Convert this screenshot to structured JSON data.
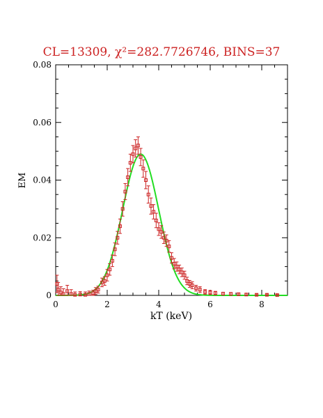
{
  "chart_data": {
    "type": "scatter",
    "title": "CL=13309, χ²=282.7726746, BINS=37",
    "xlabel": "kT (keV)",
    "ylabel": "EM",
    "xlim": [
      0,
      9
    ],
    "ylim": [
      0,
      0.08
    ],
    "x_ticks": [
      0,
      2,
      4,
      6,
      8
    ],
    "y_ticks": [
      0,
      0.02,
      0.04,
      0.06,
      0.08
    ],
    "y_tick_labels": [
      "0",
      "0.02",
      "0.04",
      "0.06",
      "0.08"
    ],
    "grid": false,
    "colors": {
      "data": "#cc2222",
      "model": "#22dd22",
      "title": "#cc2222",
      "axes": "#000000"
    },
    "series": [
      {
        "kind": "points-with-errorbars",
        "x": [
          0.05,
          0.1,
          0.2,
          0.3,
          0.45,
          0.6,
          0.75,
          0.95,
          1.15,
          1.3,
          1.45,
          1.55,
          1.65,
          1.8,
          1.9,
          2.0,
          2.1,
          2.2,
          2.3,
          2.4,
          2.5,
          2.6,
          2.7,
          2.8,
          2.9,
          3.0,
          3.1,
          3.2,
          3.3,
          3.4,
          3.5,
          3.6,
          3.7,
          3.8,
          3.9,
          4.0,
          4.1,
          4.2,
          4.3,
          4.4,
          4.5,
          4.6,
          4.7,
          4.8,
          4.9,
          5.0,
          5.1,
          5.2,
          5.3,
          5.45,
          5.6,
          5.8,
          6.0,
          6.2,
          6.5,
          6.8,
          7.1,
          7.4,
          7.8,
          8.2,
          8.6
        ],
        "y": [
          0.004,
          0.002,
          0.001,
          0.0005,
          0.0015,
          0.0005,
          0.0002,
          0.0003,
          0.0002,
          0.0005,
          0.0008,
          0.0015,
          0.002,
          0.0045,
          0.005,
          0.007,
          0.009,
          0.012,
          0.016,
          0.02,
          0.024,
          0.03,
          0.036,
          0.041,
          0.046,
          0.049,
          0.051,
          0.052,
          0.048,
          0.044,
          0.04,
          0.035,
          0.031,
          0.029,
          0.026,
          0.023,
          0.022,
          0.02,
          0.019,
          0.017,
          0.013,
          0.011,
          0.01,
          0.009,
          0.008,
          0.007,
          0.005,
          0.004,
          0.0035,
          0.0025,
          0.002,
          0.0012,
          0.001,
          0.0008,
          0.0006,
          0.0005,
          0.0004,
          0.0003,
          0.0002,
          0.0002,
          0.0001
        ],
        "err": [
          0.003,
          0.0025,
          0.002,
          0.0018,
          0.002,
          0.0015,
          0.001,
          0.001,
          0.001,
          0.001,
          0.001,
          0.0012,
          0.0012,
          0.0015,
          0.0015,
          0.002,
          0.002,
          0.002,
          0.0022,
          0.0022,
          0.0025,
          0.0025,
          0.0028,
          0.003,
          0.003,
          0.003,
          0.003,
          0.003,
          0.003,
          0.003,
          0.003,
          0.003,
          0.0028,
          0.0025,
          0.0025,
          0.0022,
          0.0022,
          0.002,
          0.002,
          0.002,
          0.0018,
          0.0018,
          0.0016,
          0.0015,
          0.0015,
          0.0014,
          0.0013,
          0.0012,
          0.0012,
          0.001,
          0.001,
          0.0008,
          0.0007,
          0.0006,
          0.0005,
          0.0005,
          0.0004,
          0.0004,
          0.0003,
          0.0003,
          0.0002
        ]
      },
      {
        "kind": "model-curve",
        "type": "gaussian",
        "peak_x": 3.3,
        "peak_y": 0.049,
        "sigma": 0.7
      }
    ]
  }
}
